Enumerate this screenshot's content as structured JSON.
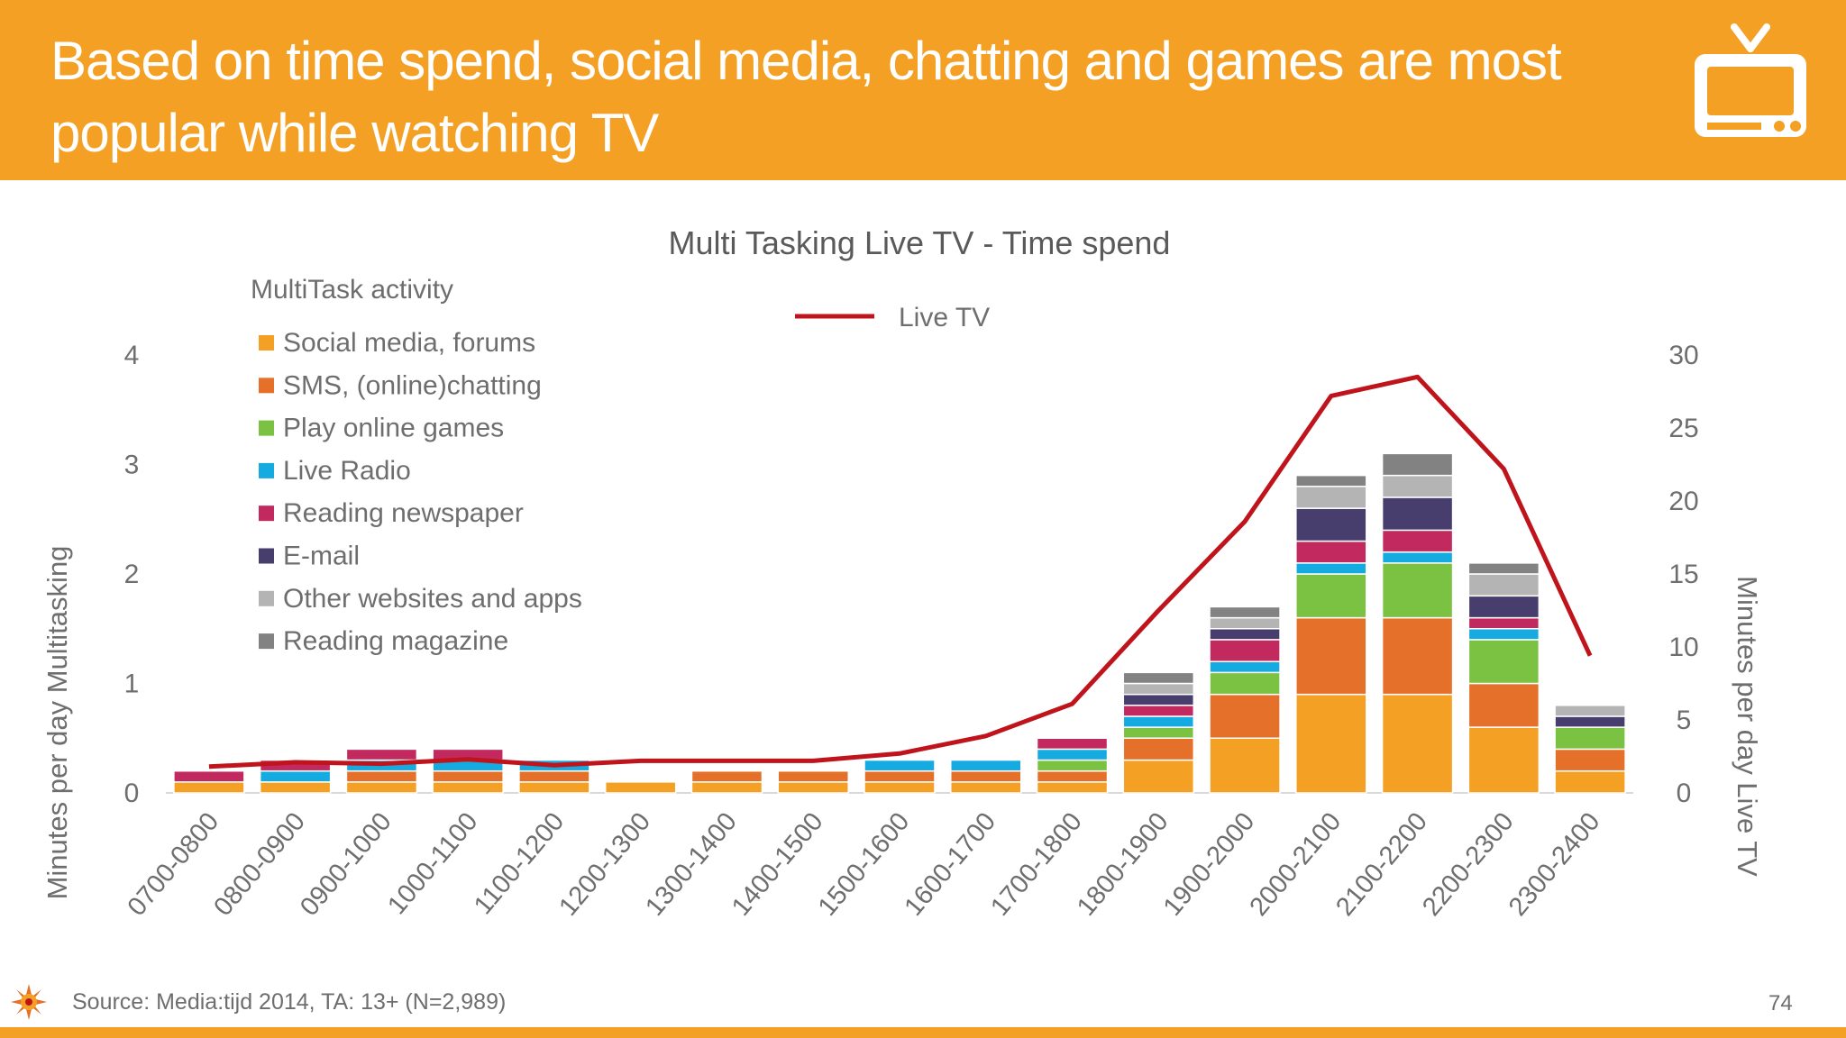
{
  "header": {
    "title": "Based on time spend, social media, chatting and games are most popular while watching TV"
  },
  "footer": {
    "source": "Source: Media:tijd 2014, TA: 13+ (N=2,989)",
    "page_number": "74"
  },
  "icons": {
    "header_icon": "tv-icon",
    "footer_logo": "sun-logo-icon"
  },
  "colors": {
    "header_bg": "#f4a024",
    "line": "#c0141c",
    "Social media, forums": "#f4a024",
    "SMS, (online)chatting": "#e5702a",
    "Play online games": "#7cc242",
    "Live Radio": "#16abe0",
    "Reading newspaper": "#c1295f",
    "E-mail": "#473e6e",
    "Other websites and apps": "#b4b4b4",
    "Reading magazine": "#828282"
  },
  "chart_data": {
    "type": "bar",
    "stacked": true,
    "title": "Multi Tasking Live TV - Time spend",
    "legend_title": "MultiTask activity",
    "ylabel": "Minutes per day Multitasking",
    "y2label": "Minutes per day Live TV",
    "ylim": [
      0,
      4
    ],
    "y2lim": [
      0,
      30
    ],
    "yticks": [
      0,
      1,
      2,
      3,
      4
    ],
    "y2ticks": [
      0,
      5,
      10,
      15,
      20,
      25,
      30
    ],
    "categories": [
      "0700-0800",
      "0800-0900",
      "0900-1000",
      "1000-1100",
      "1100-1200",
      "1200-1300",
      "1300-1400",
      "1400-1500",
      "1500-1600",
      "1600-1700",
      "1700-1800",
      "1800-1900",
      "1900-2000",
      "2000-2100",
      "2100-2200",
      "2200-2300",
      "2300-2400"
    ],
    "series": [
      {
        "name": "Social media, forums",
        "values": [
          0.1,
          0.1,
          0.1,
          0.1,
          0.1,
          0.1,
          0.1,
          0.1,
          0.1,
          0.1,
          0.1,
          0.3,
          0.5,
          0.9,
          0.9,
          0.6,
          0.2
        ]
      },
      {
        "name": "SMS, (online)chatting",
        "values": [
          0,
          0,
          0.1,
          0.1,
          0.1,
          0,
          0.1,
          0.1,
          0.1,
          0.1,
          0.1,
          0.2,
          0.4,
          0.7,
          0.7,
          0.4,
          0.2
        ]
      },
      {
        "name": "Play online games",
        "values": [
          0,
          0,
          0,
          0,
          0,
          0,
          0,
          0,
          0,
          0,
          0.1,
          0.1,
          0.2,
          0.4,
          0.5,
          0.4,
          0.2
        ]
      },
      {
        "name": "Live Radio",
        "values": [
          0,
          0.1,
          0.1,
          0.1,
          0.1,
          0,
          0,
          0,
          0.1,
          0.1,
          0.1,
          0.1,
          0.1,
          0.1,
          0.1,
          0.1,
          0
        ]
      },
      {
        "name": "Reading newspaper",
        "values": [
          0.1,
          0.1,
          0.1,
          0.1,
          0,
          0,
          0,
          0,
          0,
          0,
          0.1,
          0.1,
          0.2,
          0.2,
          0.2,
          0.1,
          0
        ]
      },
      {
        "name": "E-mail",
        "values": [
          0,
          0,
          0,
          0,
          0,
          0,
          0,
          0,
          0,
          0,
          0,
          0.1,
          0.1,
          0.3,
          0.3,
          0.2,
          0.1
        ]
      },
      {
        "name": "Other websites and apps",
        "values": [
          0,
          0,
          0,
          0,
          0,
          0,
          0,
          0,
          0,
          0,
          0,
          0.1,
          0.1,
          0.2,
          0.2,
          0.2,
          0.1
        ]
      },
      {
        "name": "Reading magazine",
        "values": [
          0,
          0,
          0,
          0,
          0,
          0,
          0,
          0,
          0,
          0,
          0,
          0.1,
          0.1,
          0.1,
          0.2,
          0.1,
          0
        ]
      }
    ],
    "line_series": {
      "name": "Live TV",
      "axis": "right",
      "values": [
        1.8,
        2.1,
        2.0,
        2.3,
        1.9,
        2.2,
        2.2,
        2.2,
        2.7,
        3.9,
        6.1,
        12.5,
        18.6,
        27.2,
        28.5,
        22.2,
        9.4
      ]
    }
  }
}
